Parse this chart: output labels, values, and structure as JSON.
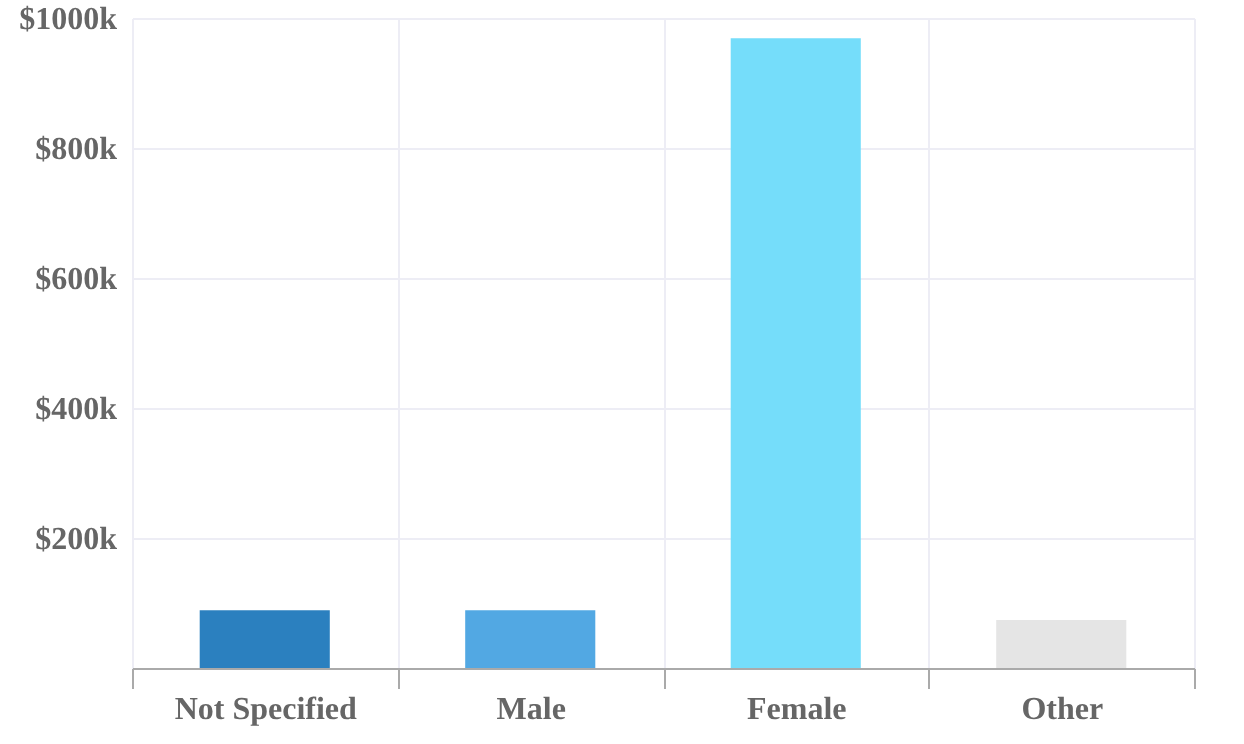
{
  "chart_data": {
    "type": "bar",
    "categories": [
      "Not Specified",
      "Male",
      "Female",
      "Other"
    ],
    "values": [
      89000,
      89000,
      969000,
      74000
    ],
    "colors": [
      "#2b80bf",
      "#52a8e3",
      "#75ddfa",
      "#e5e5e5"
    ],
    "ylim": [
      0,
      1000000
    ],
    "yticks": [
      {
        "value": 200000,
        "label": "$200k"
      },
      {
        "value": 400000,
        "label": "$400k"
      },
      {
        "value": 600000,
        "label": "$600k"
      },
      {
        "value": 800000,
        "label": "$800k"
      },
      {
        "value": 1000000,
        "label": "$1000k"
      }
    ],
    "grid": true
  }
}
